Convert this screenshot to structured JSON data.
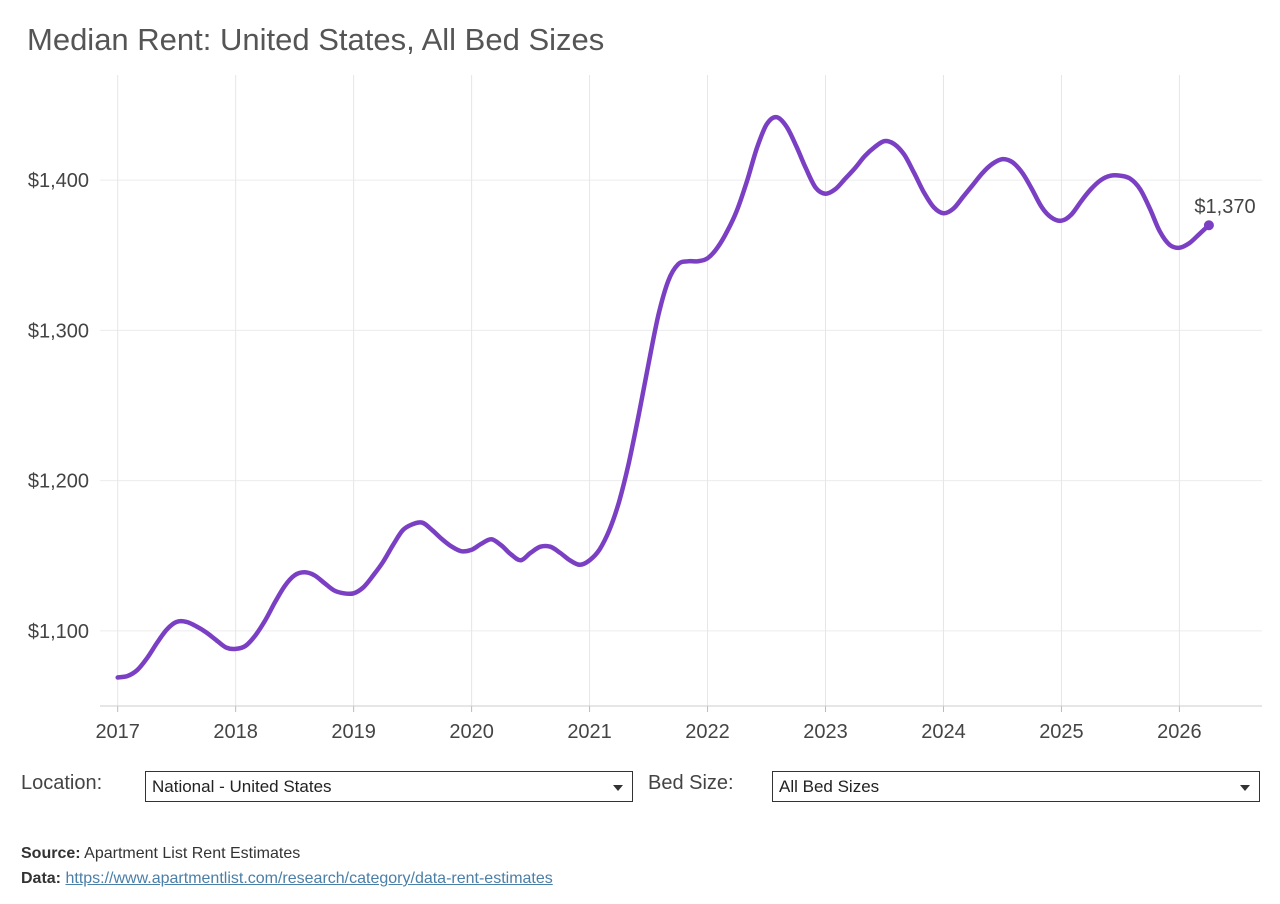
{
  "title": "Median Rent: United States, All Bed Sizes",
  "controls": {
    "location_label": "Location:",
    "location_value": "National - United States",
    "bedsize_label": "Bed Size:",
    "bedsize_value": "All Bed Sizes"
  },
  "source": {
    "source_label": "Source:",
    "source_text": "Apartment List Rent Estimates",
    "data_label": "Data:",
    "data_link": "https://www.apartmentlist.com/research/category/data-rent-estimates"
  },
  "chart_data": {
    "type": "line",
    "title": "Median Rent: United States, All Bed Sizes",
    "xlabel": "",
    "ylabel": "",
    "x_ticks": [
      "2017",
      "2018",
      "2019",
      "2020",
      "2021",
      "2022",
      "2023",
      "2024",
      "2025",
      "2026"
    ],
    "y_ticks": [
      "$1,100",
      "$1,200",
      "$1,300",
      "$1,400"
    ],
    "y_tick_values": [
      1100,
      1200,
      1300,
      1400
    ],
    "xlim": [
      2016.85,
      2026.7
    ],
    "ylim": [
      1050,
      1470
    ],
    "grid": true,
    "color": "#7b3fc4",
    "end_label": "$1,370",
    "series": [
      {
        "x": [
          2017.0,
          2017.083,
          2017.167,
          2017.25,
          2017.333,
          2017.417,
          2017.5,
          2017.583,
          2017.667,
          2017.75,
          2017.833,
          2017.917,
          2018.0,
          2018.083,
          2018.167,
          2018.25,
          2018.333,
          2018.417,
          2018.5,
          2018.583,
          2018.667,
          2018.75,
          2018.833,
          2018.917,
          2019.0,
          2019.083,
          2019.167,
          2019.25,
          2019.333,
          2019.417,
          2019.5,
          2019.583,
          2019.667,
          2019.75,
          2019.833,
          2019.917,
          2020.0,
          2020.083,
          2020.167,
          2020.25,
          2020.333,
          2020.417,
          2020.5,
          2020.583,
          2020.667,
          2020.75,
          2020.833,
          2020.917,
          2021.0,
          2021.083,
          2021.167,
          2021.25,
          2021.333,
          2021.417,
          2021.5,
          2021.583,
          2021.667,
          2021.75,
          2021.833,
          2021.917,
          2022.0,
          2022.083,
          2022.167,
          2022.25,
          2022.333,
          2022.417,
          2022.5,
          2022.583,
          2022.667,
          2022.75,
          2022.833,
          2022.917,
          2023.0,
          2023.083,
          2023.167,
          2023.25,
          2023.333,
          2023.417,
          2023.5,
          2023.583,
          2023.667,
          2023.75,
          2023.833,
          2023.917,
          2024.0,
          2024.083,
          2024.167,
          2024.25,
          2024.333,
          2024.417,
          2024.5,
          2024.583,
          2024.667,
          2024.75,
          2024.833,
          2024.917,
          2025.0,
          2025.083,
          2025.167,
          2025.25,
          2025.333,
          2025.417,
          2025.5,
          2025.583,
          2025.667,
          2025.75,
          2025.833,
          2025.917,
          2026.0,
          2026.083,
          2026.167,
          2026.25
        ],
        "values": [
          1069,
          1070,
          1074,
          1082,
          1092,
          1101,
          1106,
          1106,
          1103,
          1099,
          1094,
          1089,
          1088,
          1090,
          1097,
          1107,
          1119,
          1130,
          1137,
          1139,
          1137,
          1132,
          1127,
          1125,
          1125,
          1129,
          1137,
          1146,
          1157,
          1167,
          1171,
          1172,
          1167,
          1161,
          1156,
          1153,
          1154,
          1158,
          1161,
          1157,
          1151,
          1147,
          1152,
          1156,
          1156,
          1152,
          1147,
          1144,
          1147,
          1154,
          1167,
          1186,
          1212,
          1244,
          1278,
          1310,
          1333,
          1344,
          1346,
          1346,
          1348,
          1355,
          1366,
          1380,
          1399,
          1421,
          1437,
          1442,
          1436,
          1423,
          1408,
          1395,
          1391,
          1394,
          1401,
          1408,
          1416,
          1422,
          1426,
          1424,
          1417,
          1405,
          1392,
          1382,
          1378,
          1381,
          1389,
          1397,
          1405,
          1411,
          1414,
          1412,
          1405,
          1394,
          1382,
          1375,
          1373,
          1377,
          1386,
          1394,
          1400,
          1403,
          1403,
          1401,
          1394,
          1381,
          1366,
          1357,
          1355,
          1358,
          1364,
          1370
        ]
      }
    ]
  }
}
